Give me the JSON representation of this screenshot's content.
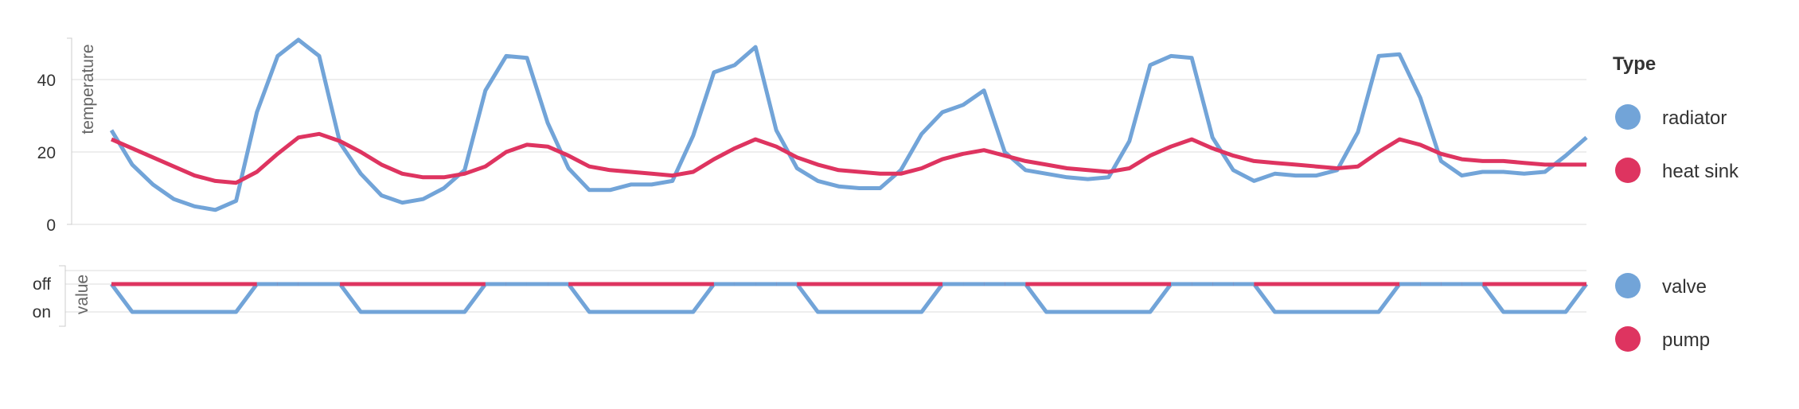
{
  "colors": {
    "radiator": "#72a4d8",
    "heat_sink": "#de3460",
    "valve": "#72a4d8",
    "pump": "#de3460",
    "grid": "#dddddd"
  },
  "chart_data": [
    {
      "type": "line",
      "ylabel": "temperature",
      "ylim": [
        0,
        52
      ],
      "yticks": [
        0,
        20,
        40
      ],
      "grid": true,
      "x": [
        0,
        1,
        2,
        3,
        4,
        5,
        6,
        7,
        8,
        9,
        10,
        11,
        12,
        13,
        14,
        15,
        16,
        17,
        18,
        19,
        20,
        21,
        22,
        23,
        24,
        25,
        26,
        27,
        28,
        29,
        30,
        31,
        32,
        33,
        34,
        35,
        36,
        37,
        38,
        39,
        40,
        41,
        42,
        43,
        44,
        45,
        46,
        47,
        48,
        49,
        50,
        51,
        52,
        53,
        54,
        55,
        56,
        57,
        58,
        59,
        60,
        61,
        62,
        63,
        64,
        65,
        66,
        67,
        68,
        69,
        70,
        71
      ],
      "series": [
        {
          "name": "radiator",
          "color": "#72a4d8",
          "values": [
            26,
            16.5,
            11,
            7,
            5,
            4,
            6.5,
            31,
            46.5,
            51,
            46.5,
            22.5,
            14,
            8,
            6,
            7,
            10,
            15,
            37,
            46.5,
            46,
            28,
            15.5,
            9.5,
            9.5,
            11,
            11,
            12,
            24.5,
            42,
            44,
            49,
            26,
            15.5,
            12,
            10.5,
            10,
            10,
            15,
            25,
            31,
            33,
            37,
            20,
            15,
            14,
            13,
            12.5,
            13,
            23,
            44,
            46.5,
            46,
            24,
            15,
            12,
            14,
            13.5,
            13.5,
            15,
            25.5,
            46.5,
            47,
            35,
            17.5,
            13.5,
            14.5,
            14.5,
            14,
            14.5,
            19,
            24
          ]
        },
        {
          "name": "heat sink",
          "color": "#de3460",
          "values": [
            23.5,
            21,
            18.5,
            16,
            13.5,
            12,
            11.5,
            14.5,
            19.5,
            24,
            25,
            23,
            20,
            16.5,
            14,
            13,
            13,
            14,
            16,
            20,
            22,
            21.5,
            19,
            16,
            15,
            14.5,
            14,
            13.5,
            14.5,
            18,
            21,
            23.5,
            21.5,
            18.5,
            16.5,
            15,
            14.5,
            14,
            14,
            15.5,
            18,
            19.5,
            20.5,
            19,
            17.5,
            16.5,
            15.5,
            15,
            14.5,
            15.5,
            19,
            21.5,
            23.5,
            21,
            19,
            17.5,
            17,
            16.5,
            16,
            15.5,
            16,
            20,
            23.5,
            22,
            19.5,
            18,
            17.5,
            17.5,
            17,
            16.5,
            16.5,
            16.5
          ]
        }
      ]
    },
    {
      "type": "line",
      "ylabel": "value",
      "yticks": [
        "off",
        "on"
      ],
      "grid": true,
      "x": [
        0,
        1,
        2,
        3,
        4,
        5,
        6,
        7,
        8,
        9,
        10,
        11,
        12,
        13,
        14,
        15,
        16,
        17,
        18,
        19,
        20,
        21,
        22,
        23,
        24,
        25,
        26,
        27,
        28,
        29,
        30,
        31,
        32,
        33,
        34,
        35,
        36,
        37,
        38,
        39,
        40,
        41,
        42,
        43,
        44,
        45,
        46,
        47,
        48,
        49,
        50,
        51,
        52,
        53,
        54,
        55,
        56,
        57,
        58,
        59,
        60,
        61,
        62,
        63,
        64,
        65,
        66,
        67,
        68,
        69,
        70,
        71
      ],
      "series": [
        {
          "name": "valve",
          "color": "#72a4d8",
          "values": [
            "off",
            "on",
            "on",
            "on",
            "on",
            "on",
            "on",
            "off",
            "off",
            "off",
            "off",
            "off",
            "on",
            "on",
            "on",
            "on",
            "on",
            "on",
            "off",
            "off",
            "off",
            "off",
            "off",
            "on",
            "on",
            "on",
            "on",
            "on",
            "on",
            "off",
            "off",
            "off",
            "off",
            "off",
            "on",
            "on",
            "on",
            "on",
            "on",
            "on",
            "off",
            "off",
            "off",
            "off",
            "off",
            "on",
            "on",
            "on",
            "on",
            "on",
            "on",
            "off",
            "off",
            "off",
            "off",
            "off",
            "on",
            "on",
            "on",
            "on",
            "on",
            "on",
            "off",
            "off",
            "off",
            "off",
            "off",
            "on",
            "on",
            "on",
            "on",
            "off"
          ]
        },
        {
          "name": "pump",
          "color": "#de3460",
          "values": [
            "off",
            "off",
            "off",
            "off",
            "off",
            "off",
            "off",
            "off",
            "off",
            "off",
            "off",
            "off",
            "off",
            "off",
            "off",
            "off",
            "off",
            "off",
            "off",
            "off",
            "off",
            "off",
            "off",
            "off",
            "off",
            "off",
            "off",
            "off",
            "off",
            "off",
            "off",
            "off",
            "off",
            "off",
            "off",
            "off",
            "off",
            "off",
            "off",
            "off",
            "off",
            "off",
            "off",
            "off",
            "off",
            "off",
            "off",
            "off",
            "off",
            "off",
            "off",
            "off",
            "off",
            "off",
            "off",
            "off",
            "off",
            "off",
            "off",
            "off",
            "off",
            "off",
            "off",
            "off",
            "off",
            "off",
            "off",
            "off",
            "off",
            "off",
            "off",
            "off"
          ]
        }
      ]
    }
  ],
  "legend": {
    "title": "Type",
    "placement": "right",
    "items": [
      {
        "label": "radiator",
        "color": "#72a4d8"
      },
      {
        "label": "heat sink",
        "color": "#de3460"
      },
      {
        "label": "valve",
        "color": "#72a4d8"
      },
      {
        "label": "pump",
        "color": "#de3460"
      }
    ]
  }
}
